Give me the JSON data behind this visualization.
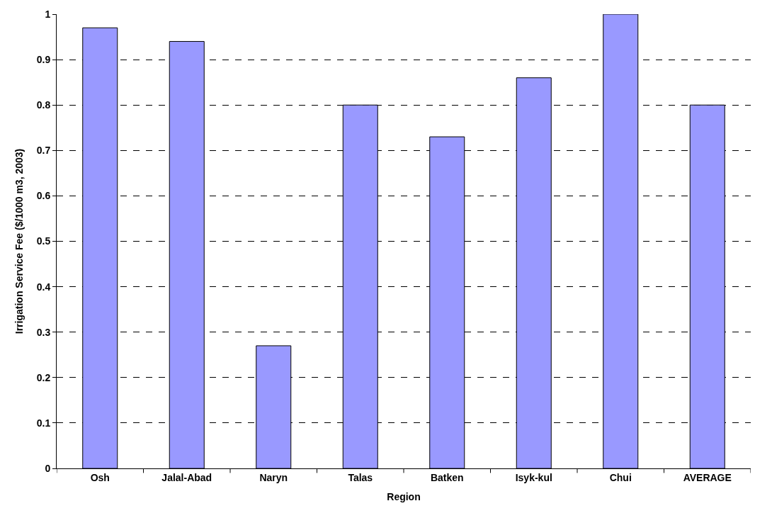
{
  "chart_data": {
    "type": "bar",
    "xlabel": "Region",
    "ylabel": "Irrigation Service Fee ($/1000 m3, 2003)",
    "categories": [
      "Osh",
      "Jalal-Abad",
      "Naryn",
      "Talas",
      "Batken",
      "Isyk-kul",
      "Chui",
      "AVERAGE"
    ],
    "values": [
      0.97,
      0.94,
      0.27,
      0.8,
      0.73,
      0.86,
      1.0,
      0.8
    ],
    "color": "#9999ff",
    "ylim": [
      0,
      1
    ],
    "yticks": [
      0,
      {
        "value": 0.1,
        "label": "0.1"
      },
      {
        "value": 0.2,
        "label": "0.2"
      },
      {
        "value": 0.3,
        "label": "0.3"
      },
      {
        "value": 0.4,
        "label": "0.4"
      },
      {
        "value": 0.5,
        "label": "0.5"
      },
      {
        "value": 0.6,
        "label": "0.6"
      },
      {
        "value": 0.7,
        "label": "0.7"
      },
      {
        "value": 0.8,
        "label": "0.8"
      },
      {
        "value": 0.9,
        "label": "0.9"
      },
      1
    ],
    "grid": "y"
  }
}
